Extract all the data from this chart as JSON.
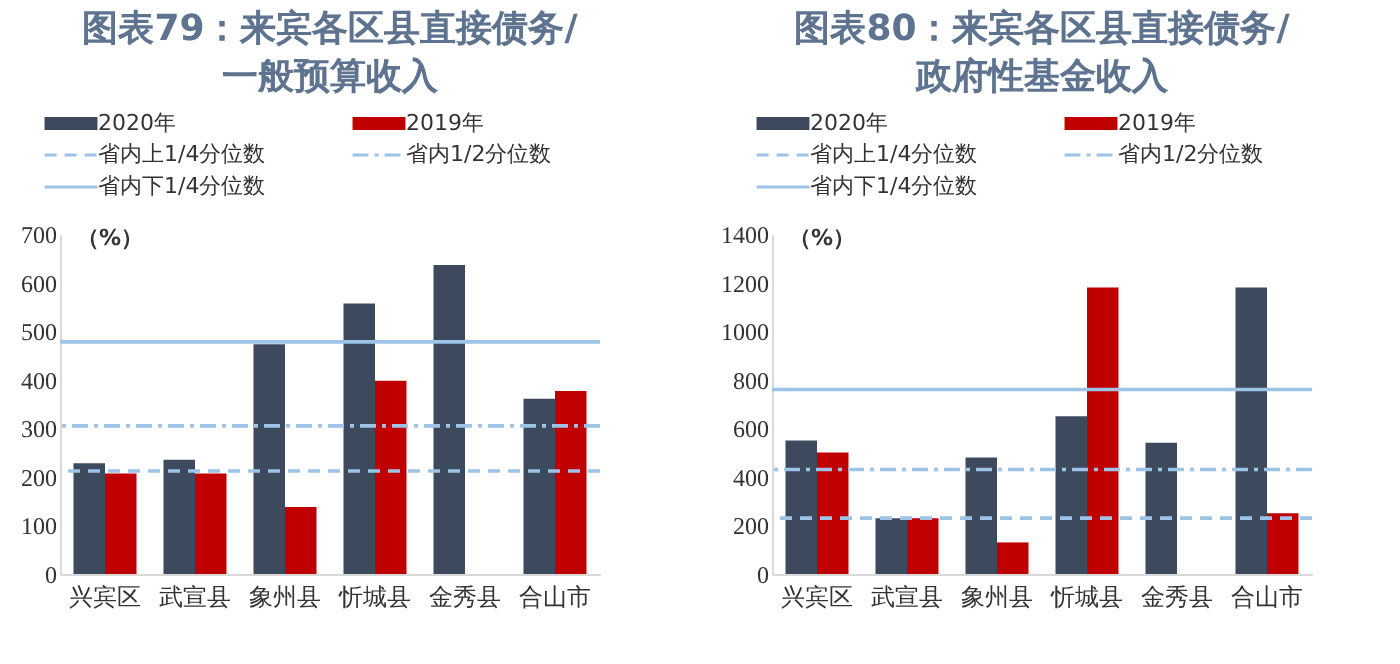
{
  "chart_data": [
    {
      "type": "bar",
      "title": "图表79：来宾各区县直接债务/\n一般预算收入",
      "ylabel": "（%）",
      "categories": [
        "兴宾区",
        "武宣县",
        "象州县",
        "忻城县",
        "金秀县",
        "合山市"
      ],
      "series": [
        {
          "name": "2020年",
          "color": "#3d4a5e",
          "values": [
            228,
            235,
            473,
            557,
            636,
            361
          ]
        },
        {
          "name": "2019年",
          "color": "#c00000",
          "values": [
            207,
            207,
            138,
            398,
            null,
            377
          ]
        }
      ],
      "ref_lines": [
        {
          "axis": "y",
          "value": 212,
          "label": "省内上1/4分位数",
          "color": "#9dc3e6",
          "line_style": "dashed"
        },
        {
          "axis": "y",
          "value": 305,
          "label": "省内1/2分位数",
          "color": "#9dc3e6",
          "line_style": "dashdot"
        },
        {
          "axis": "y",
          "value": 478,
          "label": "省内下1/4分位数",
          "color": "#9dc3e6",
          "line_style": "solid"
        }
      ],
      "ylim": [
        0,
        700
      ],
      "yticks": [
        0,
        100,
        200,
        300,
        400,
        500,
        600,
        700
      ],
      "legend": "top",
      "grid": false
    },
    {
      "type": "bar",
      "title": "图表80：来宾各区县直接债务/\n政府性基金收入",
      "ylabel": "（%）",
      "categories": [
        "兴宾区",
        "武宣县",
        "象州县",
        "忻城县",
        "金秀县",
        "合山市"
      ],
      "series": [
        {
          "name": "2020年",
          "color": "#3d4a5e",
          "values": [
            550,
            230,
            480,
            650,
            540,
            1180
          ]
        },
        {
          "name": "2019年",
          "color": "#c00000",
          "values": [
            500,
            230,
            130,
            1180,
            null,
            250
          ]
        }
      ],
      "ref_lines": [
        {
          "axis": "y",
          "value": 230,
          "label": "省内上1/4分位数",
          "color": "#9dc3e6",
          "line_style": "dashed"
        },
        {
          "axis": "y",
          "value": 430,
          "label": "省内1/2分位数",
          "color": "#9dc3e6",
          "line_style": "dashdot"
        },
        {
          "axis": "y",
          "value": 760,
          "label": "省内下1/4分位数",
          "color": "#9dc3e6",
          "line_style": "solid"
        }
      ],
      "ylim": [
        0,
        1400
      ],
      "yticks": [
        0,
        200,
        400,
        600,
        800,
        1000,
        1200,
        1400
      ],
      "legend": "top",
      "grid": false
    }
  ]
}
